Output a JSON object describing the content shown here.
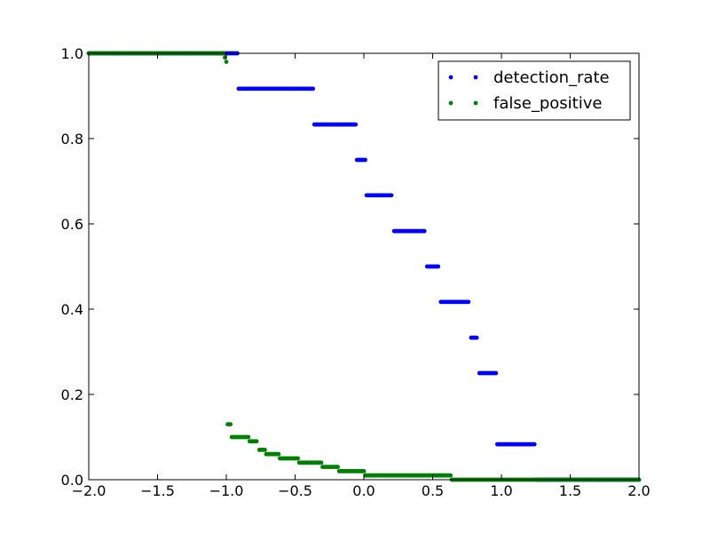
{
  "chart_data": {
    "type": "scatter",
    "xlim": [
      -2.0,
      2.0
    ],
    "ylim": [
      0.0,
      1.0
    ],
    "x_ticks": [
      -2.0,
      -1.5,
      -1.0,
      -0.5,
      0.0,
      0.5,
      1.0,
      1.5,
      2.0
    ],
    "x_tick_labels": [
      "−2.0",
      "−1.5",
      "−1.0",
      "−0.5",
      "0.0",
      "0.5",
      "1.0",
      "1.5",
      "2.0"
    ],
    "y_ticks": [
      0.0,
      0.2,
      0.4,
      0.6,
      0.8,
      1.0
    ],
    "y_tick_labels": [
      "0.0",
      "0.2",
      "0.4",
      "0.6",
      "0.8",
      "1.0"
    ],
    "grid": false,
    "legend_position": "top-right",
    "series": [
      {
        "name": "detection_rate",
        "color": "#0000ff",
        "segments": [
          {
            "x_start": -2.0,
            "x_end": -0.92,
            "y": 1.0
          },
          {
            "x_start": -0.91,
            "x_end": -0.37,
            "y": 0.917
          },
          {
            "x_start": -0.36,
            "x_end": -0.06,
            "y": 0.833
          },
          {
            "x_start": -0.05,
            "x_end": 0.01,
            "y": 0.75
          },
          {
            "x_start": 0.02,
            "x_end": 0.2,
            "y": 0.667
          },
          {
            "x_start": 0.22,
            "x_end": 0.44,
            "y": 0.583
          },
          {
            "x_start": 0.46,
            "x_end": 0.54,
            "y": 0.5
          },
          {
            "x_start": 0.56,
            "x_end": 0.76,
            "y": 0.417
          },
          {
            "x_start": 0.78,
            "x_end": 0.82,
            "y": 0.333
          },
          {
            "x_start": 0.84,
            "x_end": 0.96,
            "y": 0.25
          },
          {
            "x_start": 0.97,
            "x_end": 1.24,
            "y": 0.083
          },
          {
            "x_start": 1.25,
            "x_end": 2.0,
            "y": 0.0
          }
        ]
      },
      {
        "name": "false_positive",
        "color": "#008000",
        "segments": [
          {
            "x_start": -2.0,
            "x_end": -1.02,
            "y": 1.0
          },
          {
            "x_start": -1.01,
            "x_end": -1.01,
            "y": 0.99
          },
          {
            "x_start": -1.0,
            "x_end": -1.0,
            "y": 0.98
          },
          {
            "x_start": -0.99,
            "x_end": -0.97,
            "y": 0.13
          },
          {
            "x_start": -0.96,
            "x_end": -0.84,
            "y": 0.1
          },
          {
            "x_start": -0.83,
            "x_end": -0.78,
            "y": 0.09
          },
          {
            "x_start": -0.76,
            "x_end": -0.72,
            "y": 0.07
          },
          {
            "x_start": -0.71,
            "x_end": -0.62,
            "y": 0.06
          },
          {
            "x_start": -0.61,
            "x_end": -0.48,
            "y": 0.05
          },
          {
            "x_start": -0.47,
            "x_end": -0.31,
            "y": 0.04
          },
          {
            "x_start": -0.3,
            "x_end": -0.19,
            "y": 0.03
          },
          {
            "x_start": -0.18,
            "x_end": 0.0,
            "y": 0.02
          },
          {
            "x_start": 0.01,
            "x_end": 0.63,
            "y": 0.01
          },
          {
            "x_start": 0.64,
            "x_end": 2.0,
            "y": 0.0
          }
        ]
      }
    ]
  }
}
